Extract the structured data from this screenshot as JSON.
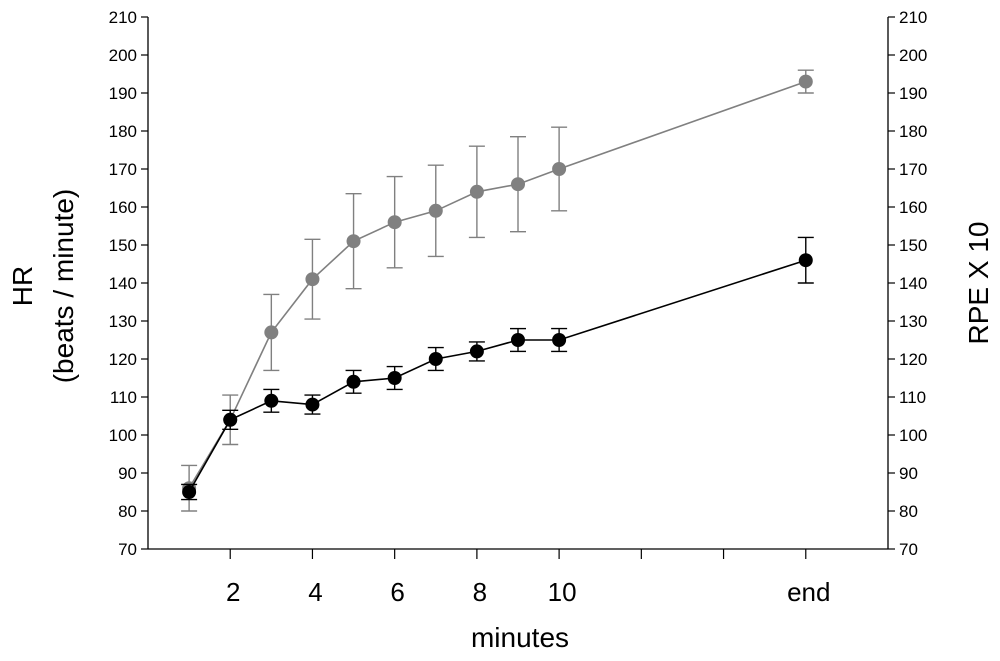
{
  "chart_data": {
    "type": "line",
    "title": "",
    "xlabel": "minutes",
    "ylabel_left": [
      "HR",
      "(beats / minute)"
    ],
    "ylabel_right": "RPE X 10",
    "ylim": [
      70,
      210
    ],
    "yticks": [
      70,
      80,
      90,
      100,
      110,
      120,
      130,
      140,
      150,
      160,
      170,
      180,
      190,
      200,
      210
    ],
    "xlim": [
      0,
      18
    ],
    "xtick_marks": [
      2,
      4,
      6,
      8,
      10,
      12,
      14,
      16
    ],
    "x_tick_labels": [
      {
        "x": 2,
        "label": "2"
      },
      {
        "x": 4,
        "label": "4"
      },
      {
        "x": 6,
        "label": "6"
      },
      {
        "x": 8,
        "label": "8"
      },
      {
        "x": 10,
        "label": "10"
      },
      {
        "x": 16,
        "label": "end"
      }
    ],
    "grid": false,
    "legend": "none",
    "series": [
      {
        "name": "RPE X 10",
        "color": "#808080",
        "x": [
          1,
          2,
          3,
          4,
          5,
          6,
          7,
          8,
          9,
          10,
          16
        ],
        "values": [
          86,
          104,
          127,
          141,
          151,
          156,
          159,
          164,
          166,
          170,
          193
        ],
        "error": [
          6,
          6.5,
          10,
          10.5,
          12.5,
          12,
          12,
          12,
          12.5,
          11,
          3
        ]
      },
      {
        "name": "HR",
        "color": "#000000",
        "x": [
          1,
          2,
          3,
          4,
          5,
          6,
          7,
          8,
          9,
          10,
          16
        ],
        "values": [
          85,
          104,
          109,
          108,
          114,
          115,
          120,
          122,
          125,
          125,
          146
        ],
        "error": [
          2,
          2.5,
          3,
          2.5,
          3,
          3,
          3,
          2.5,
          3,
          3,
          6
        ]
      }
    ]
  }
}
